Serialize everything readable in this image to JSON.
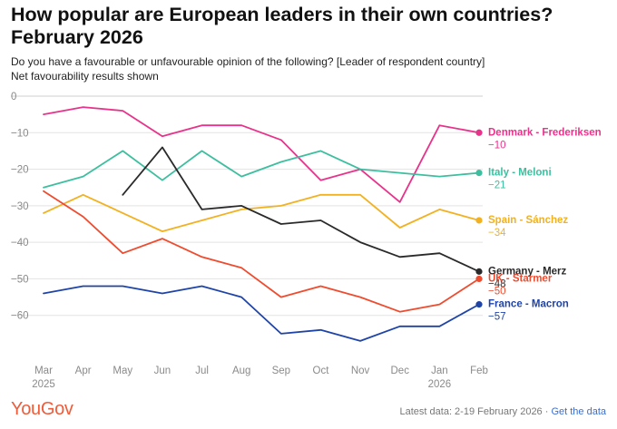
{
  "header": {
    "title": "How popular are European leaders in their own countries? February 2026",
    "subtitle_line1": "Do you have a favourable or unfavourable opinion of the following? [Leader of respondent country]",
    "subtitle_line2": "Net favourability results shown"
  },
  "footer": {
    "logo": "YouGov",
    "latest": "Latest data: 2-19 February 2026 · ",
    "link": "Get the data"
  },
  "chart_data": {
    "type": "line",
    "categories": [
      "Mar",
      "Apr",
      "May",
      "Jun",
      "Jul",
      "Aug",
      "Sep",
      "Oct",
      "Nov",
      "Dec",
      "Jan",
      "Feb"
    ],
    "category_sublabels": [
      "2025",
      "",
      "",
      "",
      "",
      "",
      "",
      "",
      "",
      "",
      "2026",
      ""
    ],
    "ylim": [
      -70,
      0
    ],
    "yticks": [
      0,
      -10,
      -20,
      -30,
      -40,
      -50,
      -60
    ],
    "grid": true,
    "legend": "end-labels",
    "series": [
      {
        "name": "Denmark - Frederiksen",
        "value_label": "−10",
        "color": "#e8338b",
        "values": [
          -5,
          -3,
          -4,
          -11,
          -8,
          -8,
          -12,
          -23,
          -20,
          -29,
          -8,
          -10
        ]
      },
      {
        "name": "Italy - Meloni",
        "value_label": "−21",
        "color": "#3dbf9f",
        "values": [
          -25,
          -22,
          -15,
          -23,
          -15,
          -22,
          -18,
          -15,
          -20,
          -21,
          -22,
          -21
        ]
      },
      {
        "name": "Spain - Sánchez",
        "value_label": "−34",
        "color": "#f2b120",
        "values": [
          -32,
          -27,
          -32,
          -37,
          -34,
          -31,
          -30,
          -27,
          -27,
          -36,
          -31,
          -34
        ]
      },
      {
        "name": "Germany - Merz",
        "value_label": "−48",
        "color": "#2a2a2a",
        "values": [
          null,
          null,
          -27,
          -14,
          -31,
          -30,
          -35,
          -34,
          -40,
          -44,
          -43,
          -48
        ]
      },
      {
        "name": "UK - Starmer",
        "value_label": "−50",
        "color": "#ef4b2e",
        "values": [
          -26,
          -33,
          -43,
          -39,
          -44,
          -47,
          -55,
          -52,
          -55,
          -59,
          -57,
          -50
        ]
      },
      {
        "name": "France - Macron",
        "value_label": "−57",
        "color": "#1f44a8",
        "values": [
          -54,
          -52,
          -52,
          -54,
          -52,
          -55,
          -65,
          -64,
          -67,
          -63,
          -63,
          -57
        ]
      }
    ]
  }
}
